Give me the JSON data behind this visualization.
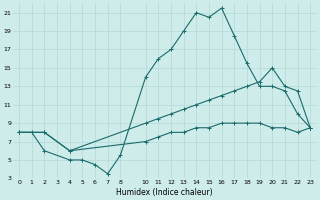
{
  "xlabel": "Humidex (Indice chaleur)",
  "background_color": "#ceecea",
  "grid_color": "#b8dcda",
  "line_color": "#1a6b6b",
  "xlim": [
    -0.5,
    23.5
  ],
  "ylim": [
    3,
    22
  ],
  "yticks": [
    3,
    5,
    7,
    9,
    11,
    13,
    15,
    17,
    19,
    21
  ],
  "xticks": [
    0,
    1,
    2,
    3,
    4,
    5,
    6,
    7,
    8,
    10,
    11,
    12,
    13,
    14,
    15,
    16,
    17,
    18,
    19,
    20,
    21,
    22,
    23
  ],
  "series1_x": [
    0,
    1,
    2,
    4,
    5,
    6,
    7,
    8,
    10,
    11,
    12,
    13,
    14,
    15,
    16,
    17,
    18,
    19,
    20,
    21,
    22,
    23
  ],
  "series1_y": [
    8,
    8,
    6,
    5,
    5,
    4.5,
    3.5,
    5.5,
    14,
    16,
    17,
    19,
    21,
    20.5,
    21.5,
    18.5,
    15.5,
    13,
    13,
    12.5,
    10,
    8.5
  ],
  "series2_x": [
    0,
    2,
    4,
    10,
    11,
    12,
    13,
    14,
    15,
    16,
    17,
    18,
    19,
    20,
    21,
    22,
    23
  ],
  "series2_y": [
    8,
    8,
    6,
    9,
    9.5,
    10,
    10.5,
    11,
    11.5,
    12,
    12.5,
    13,
    13.5,
    15,
    13,
    12.5,
    8.5
  ],
  "series3_x": [
    0,
    2,
    4,
    10,
    11,
    12,
    13,
    14,
    15,
    16,
    17,
    18,
    19,
    20,
    21,
    22,
    23
  ],
  "series3_y": [
    8,
    8,
    6,
    7,
    7.5,
    8,
    8,
    8.5,
    8.5,
    9,
    9,
    9,
    9,
    8.5,
    8.5,
    8,
    8.5
  ]
}
